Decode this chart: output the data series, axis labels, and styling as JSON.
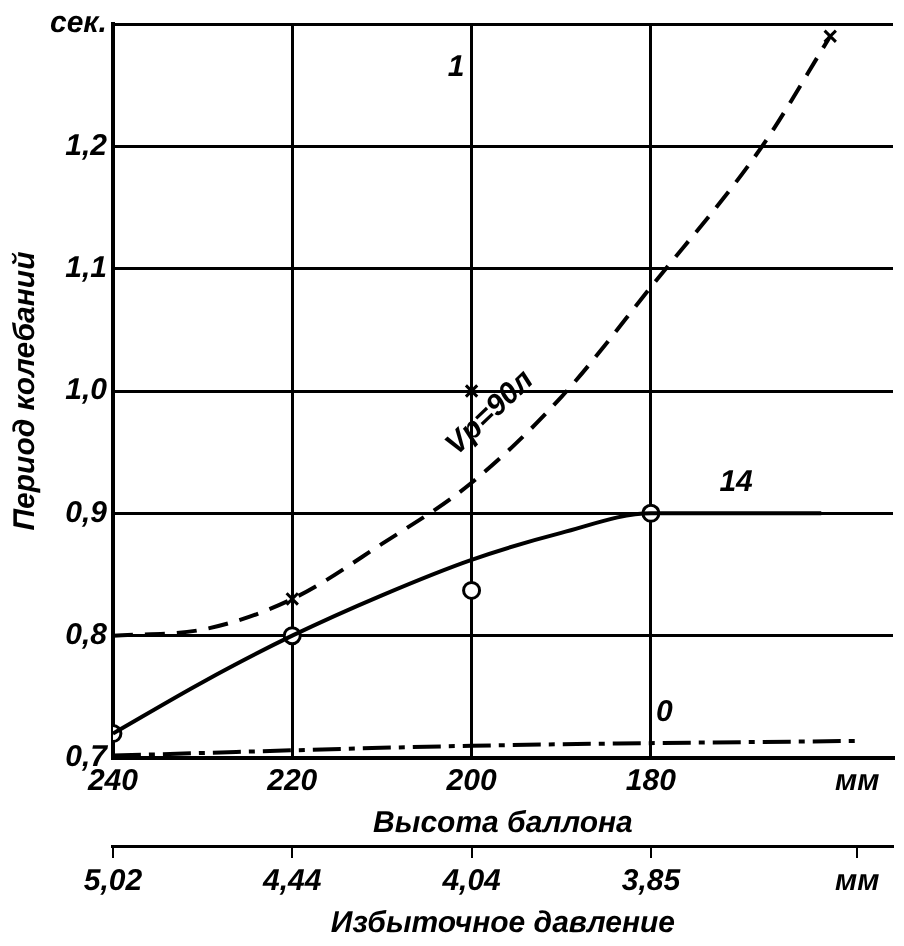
{
  "chart_data": {
    "type": "line",
    "xlabel": "Высота баллона",
    "ylabel": "Период колебаний",
    "x2label": "Избыточное давление",
    "xlim": [
      240,
      153
    ],
    "xticks": [
      240,
      220,
      200,
      180,
      {
        "value": 157,
        "label": "мм"
      }
    ],
    "ylim": [
      0.7,
      1.3
    ],
    "yticks": [
      {
        "value": 0.7,
        "label": "0,7"
      },
      {
        "value": 0.8,
        "label": "0,8"
      },
      {
        "value": 0.9,
        "label": "0,9"
      },
      {
        "value": 1.0,
        "label": "1,0"
      },
      {
        "value": 1.1,
        "label": "1,1"
      },
      {
        "value": 1.2,
        "label": "1,2"
      },
      {
        "value": 1.3,
        "label": "сек."
      }
    ],
    "grid": true,
    "legend": false,
    "series": [
      {
        "name": "14",
        "color": "#000000",
        "line_style": "solid",
        "marker": "none",
        "x": [
          240,
          230,
          220,
          210,
          200,
          190,
          180,
          161
        ],
        "values": [
          0.72,
          0.762,
          0.8,
          0.833,
          0.862,
          0.884,
          0.9,
          0.9
        ]
      },
      {
        "name": "Vp=90л",
        "color": "#000000",
        "line_style": "dashed",
        "marker": "none",
        "x": [
          240,
          230,
          220,
          210,
          200,
          190,
          180,
          167.6,
          160
        ],
        "values": [
          0.8,
          0.805,
          0.83,
          0.875,
          0.925,
          0.995,
          1.085,
          1.2,
          1.29
        ]
      },
      {
        "name": "0",
        "color": "#000000",
        "line_style": "dotted",
        "marker": "none",
        "x": [
          240,
          200,
          157
        ],
        "values": [
          0.702,
          0.71,
          0.714
        ]
      },
      {
        "type": "scatter",
        "color": "#000000",
        "marker": "circle",
        "x": [
          240,
          220,
          200,
          180
        ],
        "values": [
          0.72,
          0.8,
          0.837,
          0.9
        ]
      },
      {
        "type": "scatter",
        "color": "#000000",
        "marker": "cross",
        "x": [
          220,
          200,
          160
        ],
        "values": [
          0.83,
          1.0,
          1.29
        ]
      }
    ],
    "annotations": [
      "1",
      {
        "text": "5,02",
        "x": 240
      },
      {
        "text": "4,44",
        "x": 220
      },
      {
        "text": "4,04",
        "x": 200
      },
      {
        "text": "3,85",
        "x": 180
      },
      {
        "text": "мм",
        "x": 157
      }
    ]
  }
}
